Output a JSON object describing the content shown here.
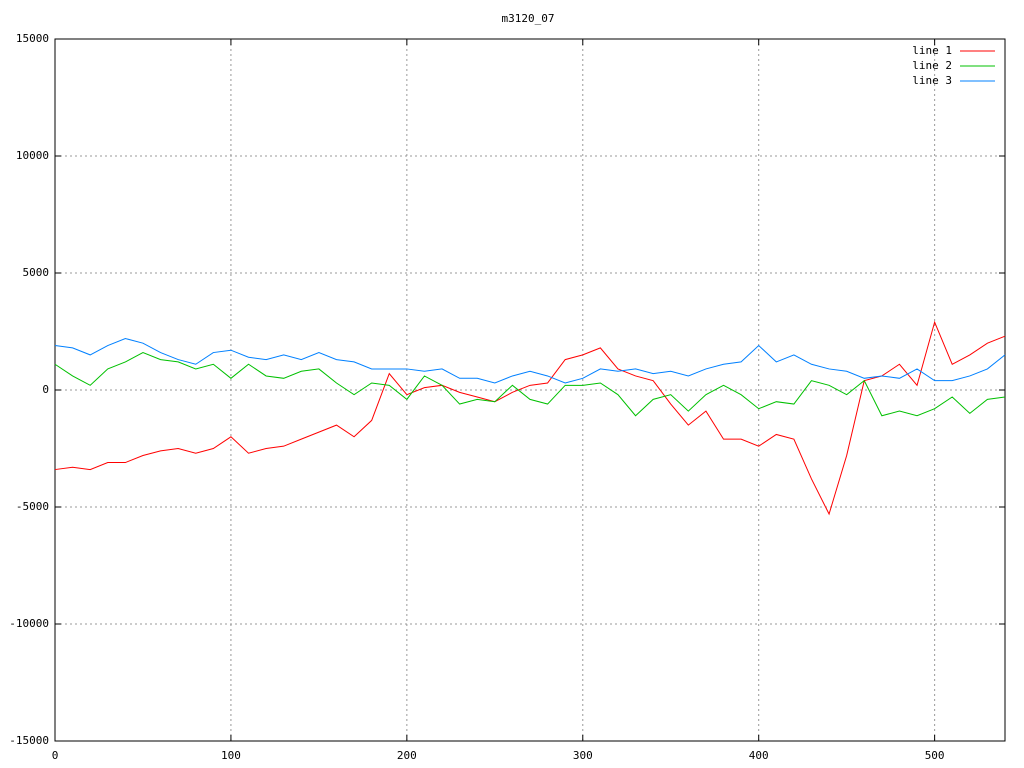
{
  "chart_data": {
    "type": "line",
    "title": "m3120_07",
    "x": [
      0,
      10,
      20,
      30,
      40,
      50,
      60,
      70,
      80,
      90,
      100,
      110,
      120,
      130,
      140,
      150,
      160,
      170,
      180,
      190,
      200,
      210,
      220,
      230,
      240,
      250,
      260,
      270,
      280,
      290,
      300,
      310,
      320,
      330,
      340,
      350,
      360,
      370,
      380,
      390,
      400,
      410,
      420,
      430,
      440,
      450,
      460,
      470,
      480,
      490,
      500,
      510,
      520,
      530,
      540
    ],
    "series": [
      {
        "name": "line 1",
        "color": "#ff0000",
        "values": [
          -3400,
          -3300,
          -3400,
          -3100,
          -3100,
          -2800,
          -2600,
          -2500,
          -2700,
          -2500,
          -2000,
          -2700,
          -2500,
          -2400,
          -2100,
          -1800,
          -1500,
          -2000,
          -1300,
          700,
          -200,
          100,
          200,
          -100,
          -300,
          -500,
          -100,
          200,
          300,
          1300,
          1500,
          1800,
          900,
          600,
          400,
          -600,
          -1500,
          -900,
          -2100,
          -2100,
          -2400,
          -1900,
          -2100,
          -3800,
          -5300,
          -2800,
          400,
          600,
          1100,
          200,
          2900,
          1100,
          1500,
          2000,
          2300
        ]
      },
      {
        "name": "line 2",
        "color": "#00c000",
        "values": [
          1100,
          600,
          200,
          900,
          1200,
          1600,
          1300,
          1200,
          900,
          1100,
          500,
          1100,
          600,
          500,
          800,
          900,
          300,
          -200,
          300,
          200,
          -400,
          600,
          200,
          -600,
          -400,
          -500,
          200,
          -400,
          -600,
          200,
          200,
          300,
          -200,
          -1100,
          -400,
          -200,
          -900,
          -200,
          200,
          -200,
          -800,
          -500,
          -600,
          400,
          200,
          -200,
          400,
          -1100,
          -900,
          -1100,
          -800,
          -300,
          -1000,
          -400,
          -300
        ]
      },
      {
        "name": "line 3",
        "color": "#0080ff",
        "values": [
          1900,
          1800,
          1500,
          1900,
          2200,
          2000,
          1600,
          1300,
          1100,
          1600,
          1700,
          1400,
          1300,
          1500,
          1300,
          1600,
          1300,
          1200,
          900,
          900,
          900,
          800,
          900,
          500,
          500,
          300,
          600,
          800,
          600,
          300,
          500,
          900,
          800,
          900,
          700,
          800,
          600,
          900,
          1100,
          1200,
          1900,
          1200,
          1500,
          1100,
          900,
          800,
          500,
          600,
          500,
          900,
          400,
          400,
          600,
          900,
          1500
        ]
      }
    ],
    "xlim": [
      0,
      540
    ],
    "xticks": [
      0,
      100,
      200,
      300,
      400,
      500
    ],
    "ylim": [
      -15000,
      15000
    ],
    "yticks": [
      -15000,
      -10000,
      -5000,
      0,
      5000,
      10000,
      15000
    ],
    "grid": true,
    "legend": "upper right"
  }
}
